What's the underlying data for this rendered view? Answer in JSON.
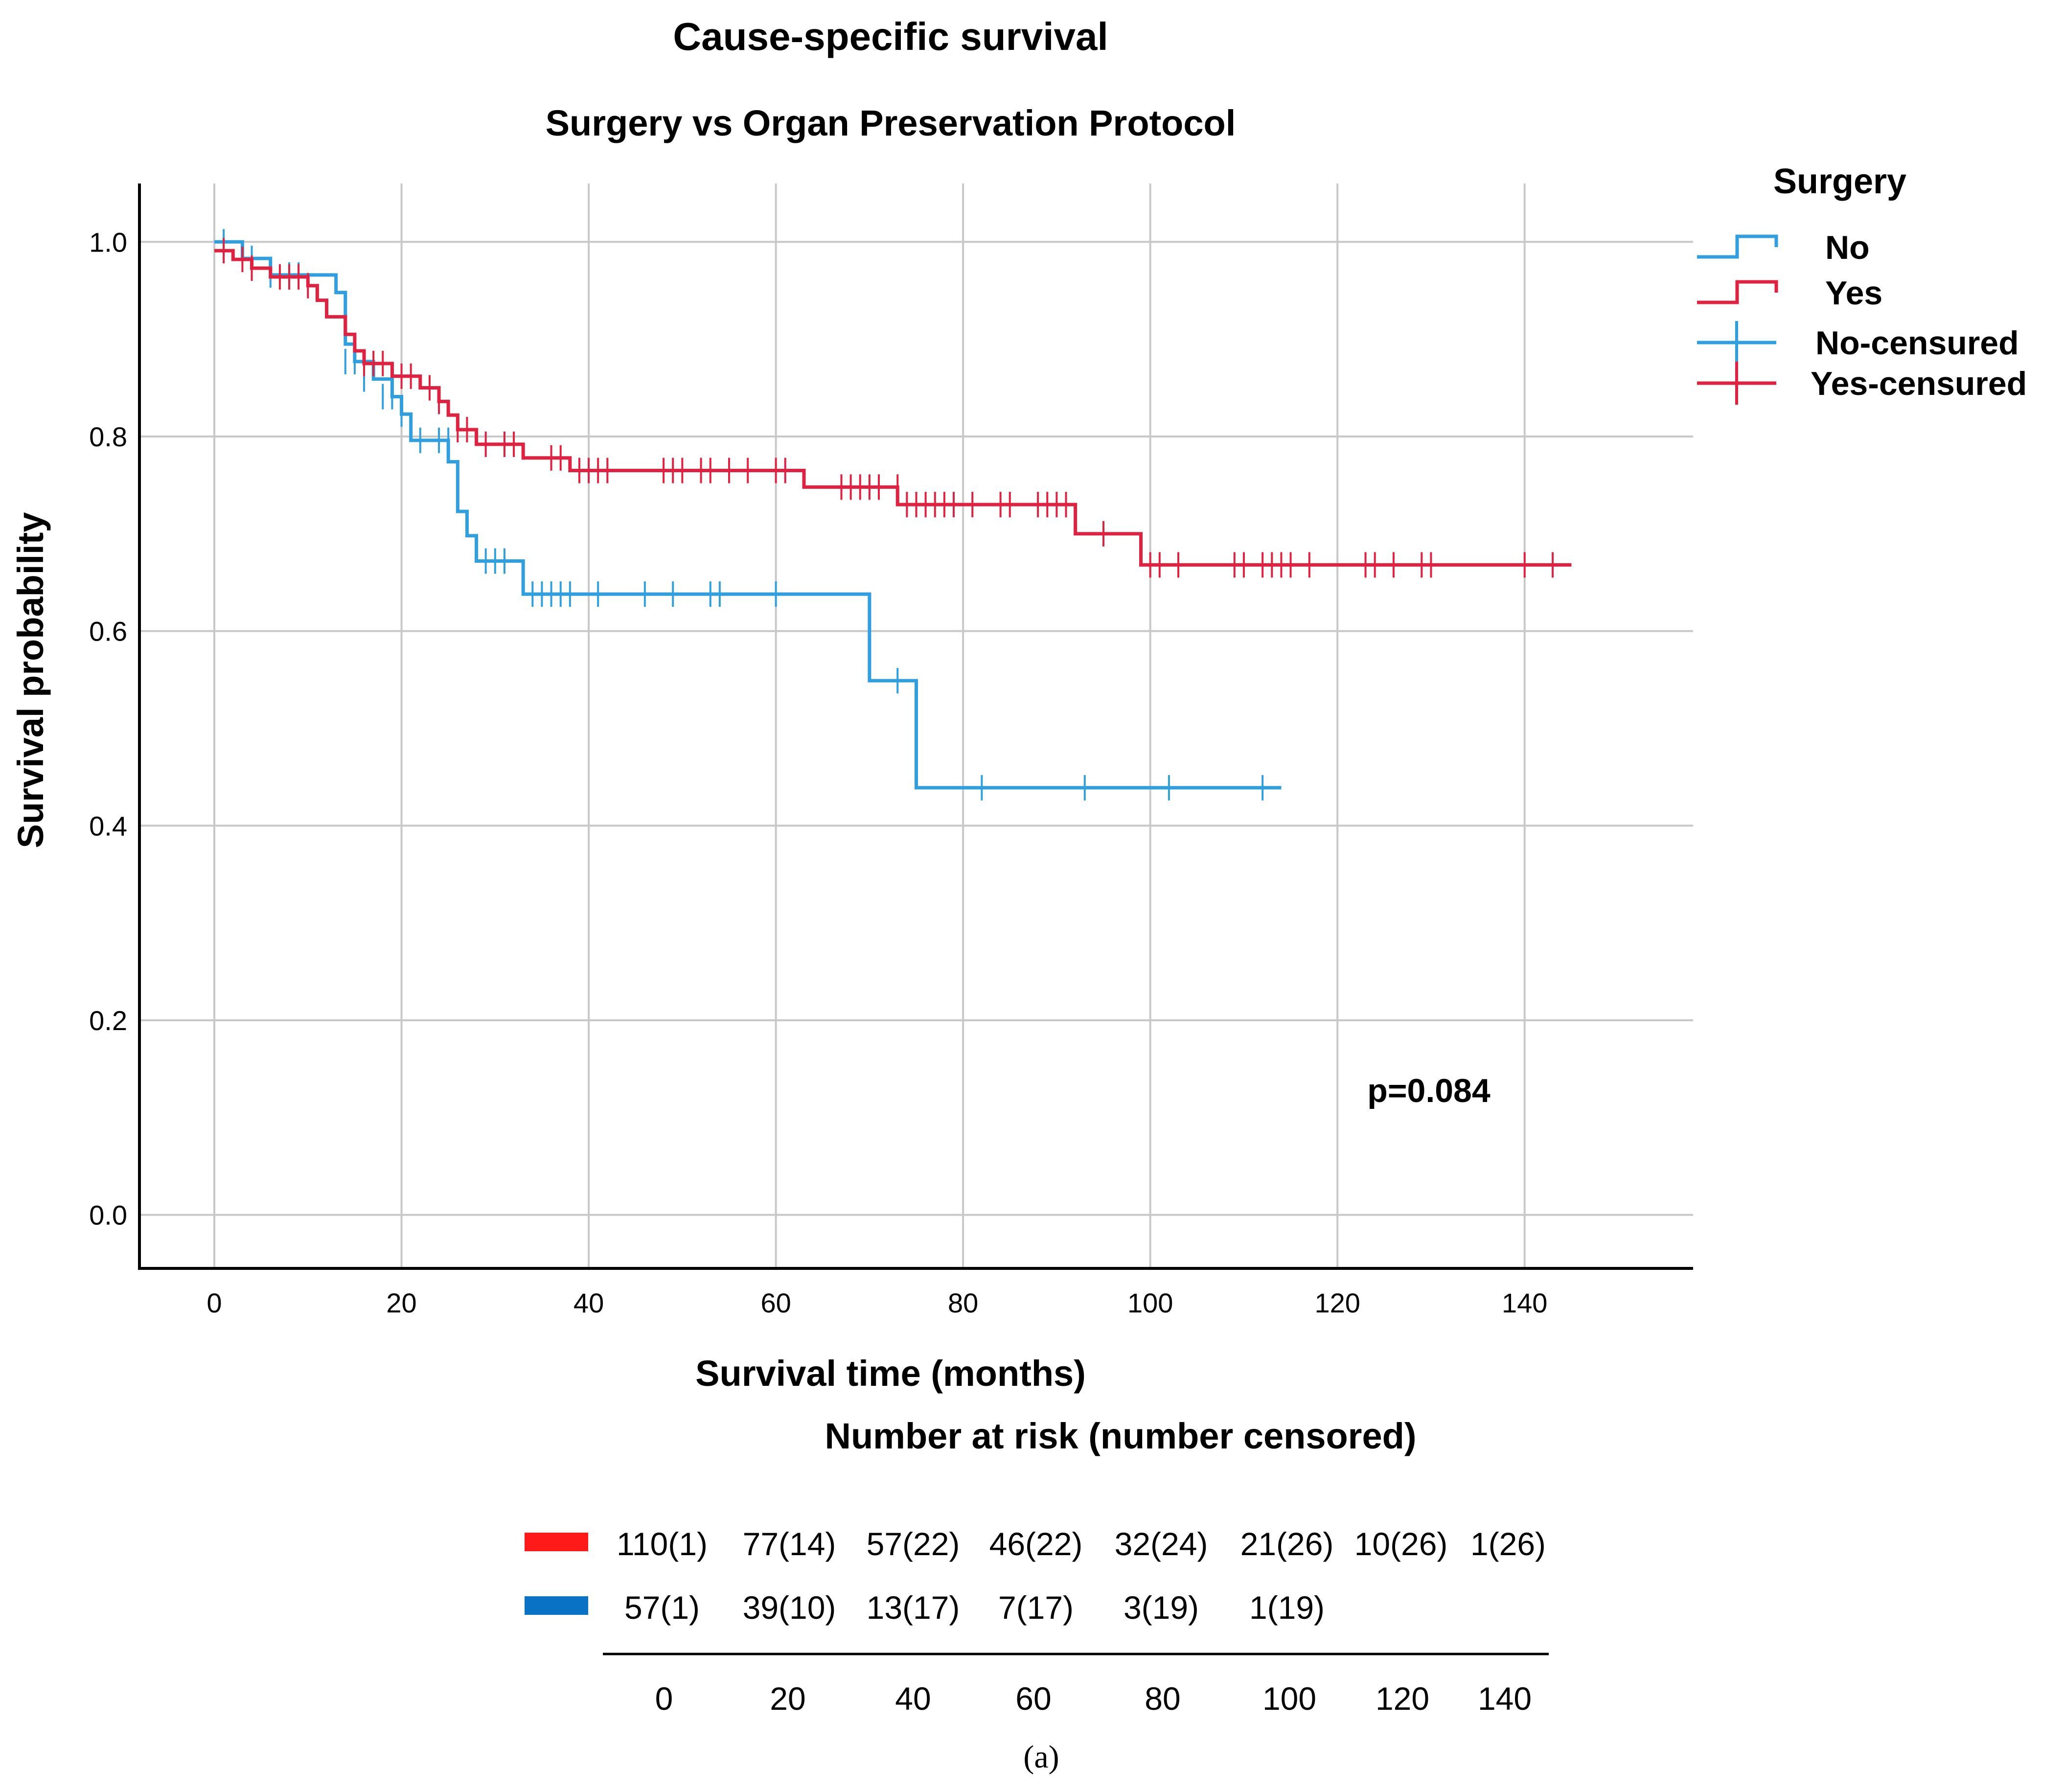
{
  "chart_data": {
    "type": "line",
    "subtype": "kaplan-meier",
    "title": "Cause-specific survival",
    "subtitle": "Surgery vs Organ Preservation Protocol",
    "xlabel": "Survival time (months)",
    "ylabel": "Survival probability",
    "xlim": [
      -8,
      158
    ],
    "ylim": [
      -0.055,
      1.06
    ],
    "x_ticks": [
      0,
      20,
      40,
      60,
      80,
      100,
      120,
      140
    ],
    "x_tick_labels": [
      "0",
      "20",
      "40",
      "60",
      "80",
      "100",
      "120",
      "140"
    ],
    "y_ticks": [
      0.0,
      0.2,
      0.4,
      0.6,
      0.8,
      1.0
    ],
    "y_tick_labels": [
      "0.0",
      "0.2",
      "0.4",
      "0.6",
      "0.8",
      "1.0"
    ],
    "grid": true,
    "legend": {
      "title": "Surgery",
      "position": "right",
      "entries": [
        {
          "label": "No",
          "kind": "step",
          "color": "#2f9fe0"
        },
        {
          "label": "Yes",
          "kind": "step",
          "color": "#e0213f"
        },
        {
          "label": "No-censured",
          "kind": "censor",
          "color": "#2f9fe0"
        },
        {
          "label": "Yes-censured",
          "kind": "censor",
          "color": "#e0213f"
        }
      ]
    },
    "annotation": "p=0.084",
    "series": [
      {
        "name": "No",
        "color": "#2f9fe0",
        "steps": [
          [
            0,
            1.0
          ],
          [
            3,
            0.983
          ],
          [
            6,
            0.966
          ],
          [
            13,
            0.948
          ],
          [
            14,
            0.895
          ],
          [
            15,
            0.877
          ],
          [
            17,
            0.859
          ],
          [
            19,
            0.841
          ],
          [
            20,
            0.823
          ],
          [
            21,
            0.796
          ],
          [
            25,
            0.774
          ],
          [
            26,
            0.723
          ],
          [
            27,
            0.698
          ],
          [
            28,
            0.672
          ],
          [
            33,
            0.638
          ],
          [
            70,
            0.549
          ],
          [
            75,
            0.439
          ]
        ],
        "end": 114,
        "censored": [
          [
            1,
            1.0
          ],
          [
            4,
            0.983
          ],
          [
            6,
            0.966
          ],
          [
            8,
            0.966
          ],
          [
            9,
            0.966
          ],
          [
            14,
            0.877
          ],
          [
            15,
            0.877
          ],
          [
            16,
            0.859
          ],
          [
            18,
            0.841
          ],
          [
            19,
            0.841
          ],
          [
            20,
            0.823
          ],
          [
            22,
            0.796
          ],
          [
            24,
            0.796
          ],
          [
            25,
            0.796
          ],
          [
            29,
            0.672
          ],
          [
            30,
            0.672
          ],
          [
            31,
            0.672
          ],
          [
            34,
            0.638
          ],
          [
            35,
            0.638
          ],
          [
            36,
            0.638
          ],
          [
            37,
            0.638
          ],
          [
            38,
            0.638
          ],
          [
            41,
            0.638
          ],
          [
            46,
            0.638
          ],
          [
            49,
            0.638
          ],
          [
            53,
            0.638
          ],
          [
            54,
            0.638
          ],
          [
            60,
            0.638
          ],
          [
            73,
            0.549
          ],
          [
            82,
            0.439
          ],
          [
            93,
            0.439
          ],
          [
            102,
            0.439
          ],
          [
            112,
            0.439
          ]
        ]
      },
      {
        "name": "Yes",
        "color": "#e0213f",
        "steps": [
          [
            0,
            0.991
          ],
          [
            2,
            0.982
          ],
          [
            4,
            0.973
          ],
          [
            6,
            0.964
          ],
          [
            10,
            0.955
          ],
          [
            11,
            0.94
          ],
          [
            12,
            0.923
          ],
          [
            14,
            0.905
          ],
          [
            15,
            0.888
          ],
          [
            16,
            0.875
          ],
          [
            19,
            0.862
          ],
          [
            22,
            0.85
          ],
          [
            24,
            0.836
          ],
          [
            25,
            0.822
          ],
          [
            26,
            0.807
          ],
          [
            28,
            0.792
          ],
          [
            33,
            0.778
          ],
          [
            38,
            0.765
          ],
          [
            63,
            0.748
          ],
          [
            73,
            0.73
          ],
          [
            92,
            0.7
          ],
          [
            99,
            0.668
          ]
        ],
        "end": 145,
        "censored": [
          [
            1,
            0.991
          ],
          [
            3,
            0.982
          ],
          [
            4,
            0.973
          ],
          [
            7,
            0.964
          ],
          [
            8,
            0.964
          ],
          [
            9,
            0.964
          ],
          [
            10,
            0.955
          ],
          [
            16,
            0.875
          ],
          [
            17,
            0.875
          ],
          [
            18,
            0.875
          ],
          [
            20,
            0.862
          ],
          [
            21,
            0.862
          ],
          [
            23,
            0.85
          ],
          [
            24,
            0.836
          ],
          [
            26,
            0.807
          ],
          [
            27,
            0.807
          ],
          [
            29,
            0.792
          ],
          [
            31,
            0.792
          ],
          [
            32,
            0.792
          ],
          [
            36,
            0.778
          ],
          [
            37,
            0.778
          ],
          [
            39,
            0.765
          ],
          [
            40,
            0.765
          ],
          [
            41,
            0.765
          ],
          [
            42,
            0.765
          ],
          [
            48,
            0.765
          ],
          [
            49,
            0.765
          ],
          [
            50,
            0.765
          ],
          [
            52,
            0.765
          ],
          [
            53,
            0.765
          ],
          [
            55,
            0.765
          ],
          [
            57,
            0.765
          ],
          [
            60,
            0.765
          ],
          [
            61,
            0.765
          ],
          [
            67,
            0.748
          ],
          [
            68,
            0.748
          ],
          [
            69,
            0.748
          ],
          [
            70,
            0.748
          ],
          [
            71,
            0.748
          ],
          [
            73,
            0.748
          ],
          [
            74,
            0.73
          ],
          [
            75,
            0.73
          ],
          [
            76,
            0.73
          ],
          [
            77,
            0.73
          ],
          [
            78,
            0.73
          ],
          [
            79,
            0.73
          ],
          [
            81,
            0.73
          ],
          [
            84,
            0.73
          ],
          [
            85,
            0.73
          ],
          [
            88,
            0.73
          ],
          [
            89,
            0.73
          ],
          [
            90,
            0.73
          ],
          [
            91,
            0.73
          ],
          [
            95,
            0.7
          ],
          [
            100,
            0.668
          ],
          [
            101,
            0.668
          ],
          [
            103,
            0.668
          ],
          [
            109,
            0.668
          ],
          [
            110,
            0.668
          ],
          [
            112,
            0.668
          ],
          [
            113,
            0.668
          ],
          [
            114,
            0.668
          ],
          [
            115,
            0.668
          ],
          [
            117,
            0.668
          ],
          [
            123,
            0.668
          ],
          [
            124,
            0.668
          ],
          [
            126,
            0.668
          ],
          [
            129,
            0.668
          ],
          [
            130,
            0.668
          ],
          [
            140,
            0.668
          ],
          [
            143,
            0.668
          ]
        ]
      }
    ],
    "risk_table": {
      "title": "Number at risk (number censored)",
      "times": [
        "0",
        "20",
        "40",
        "60",
        "80",
        "100",
        "120",
        "140"
      ],
      "rows": [
        {
          "group": "Yes",
          "color": "#ff1a1a",
          "values": [
            "110(1)",
            "77(14)",
            "57(22)",
            "46(22)",
            "32(24)",
            "21(26)",
            "10(26)",
            "1(26)"
          ]
        },
        {
          "group": "No",
          "color": "#0a72c4",
          "values": [
            "57(1)",
            "39(10)",
            "13(17)",
            "7(17)",
            "3(19)",
            "1(19)"
          ]
        }
      ]
    },
    "caption": "(a)"
  }
}
